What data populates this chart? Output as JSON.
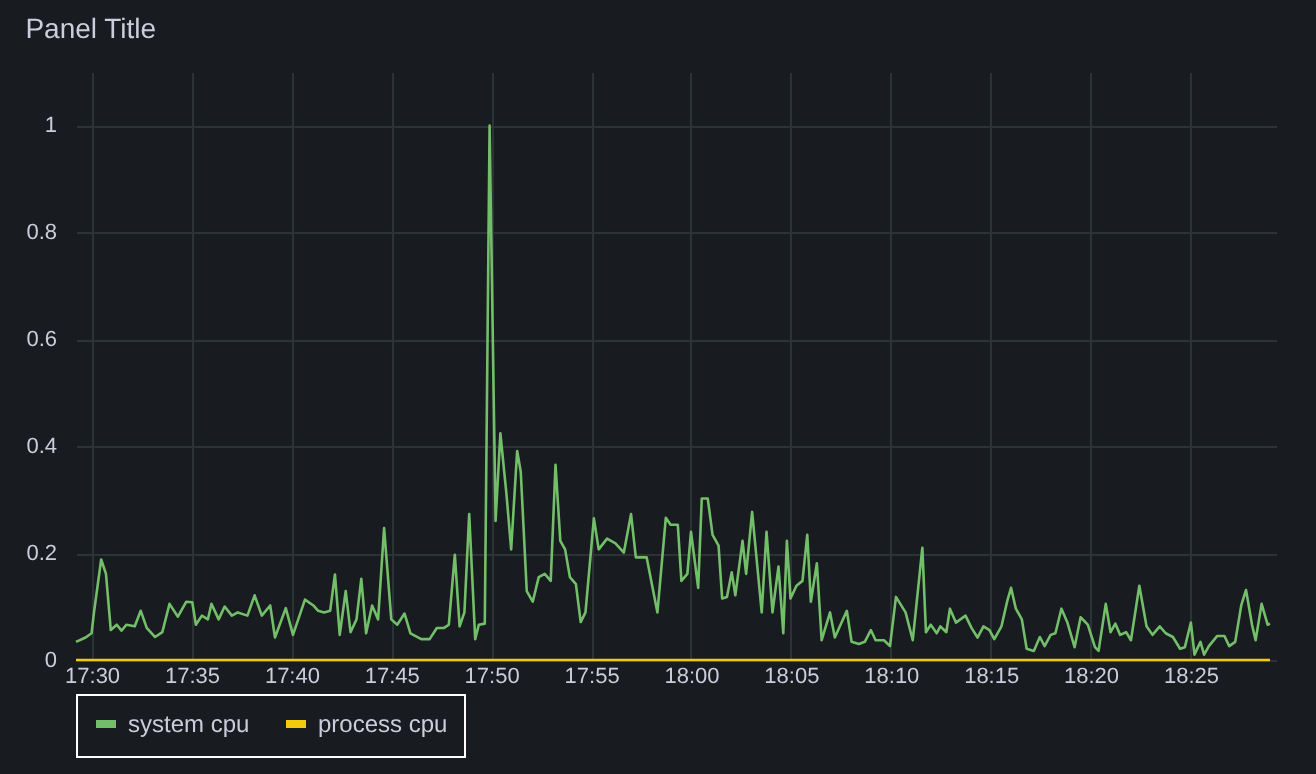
{
  "chart_data": {
    "type": "line",
    "title": "Panel Title",
    "xlim": [
      17.487,
      18.488
    ],
    "xticks": [
      {
        "value": 17.5,
        "label": "17:30"
      },
      {
        "value": 17.5833,
        "label": "17:35"
      },
      {
        "value": 17.6667,
        "label": "17:40"
      },
      {
        "value": 17.75,
        "label": "17:45"
      },
      {
        "value": 17.8333,
        "label": "17:50"
      },
      {
        "value": 17.9167,
        "label": "17:55"
      },
      {
        "value": 18.0,
        "label": "18:00"
      },
      {
        "value": 18.0833,
        "label": "18:05"
      },
      {
        "value": 18.1667,
        "label": "18:10"
      },
      {
        "value": 18.25,
        "label": "18:15"
      },
      {
        "value": 18.3333,
        "label": "18:20"
      },
      {
        "value": 18.4167,
        "label": "18:25"
      }
    ],
    "ylim": [
      0,
      1.1
    ],
    "yticks": [
      0,
      0.2,
      0.4,
      0.6,
      0.8,
      1
    ],
    "grid": true,
    "legend": "bottom left",
    "line_style": "solid",
    "series": [
      {
        "name": "system cpu",
        "color": "#73bf69",
        "x": [
          17.487,
          17.495,
          17.5,
          17.502,
          17.508,
          17.512,
          17.516,
          17.521,
          17.525,
          17.529,
          17.536,
          17.541,
          17.546,
          17.553,
          17.559,
          17.565,
          17.572,
          17.579,
          17.584,
          17.587,
          17.592,
          17.597,
          17.6,
          17.606,
          17.611,
          17.617,
          17.622,
          17.63,
          17.636,
          17.642,
          17.649,
          17.653,
          17.662,
          17.668,
          17.678,
          17.685,
          17.689,
          17.694,
          17.699,
          17.703,
          17.707,
          17.712,
          17.716,
          17.721,
          17.725,
          17.729,
          17.734,
          17.739,
          17.744,
          17.75,
          17.755,
          17.761,
          17.766,
          17.775,
          17.782,
          17.788,
          17.794,
          17.798,
          17.803,
          17.807,
          17.811,
          17.815,
          17.82,
          17.823,
          17.828,
          17.832,
          17.837,
          17.841,
          17.846,
          17.85,
          17.855,
          17.858,
          17.863,
          17.868,
          17.873,
          17.878,
          17.883,
          17.887,
          17.891,
          17.895,
          17.899,
          17.904,
          17.908,
          17.912,
          17.919,
          17.923,
          17.93,
          17.937,
          17.944,
          17.95,
          17.954,
          17.963,
          17.972,
          17.979,
          17.983,
          17.989,
          17.992,
          17.997,
          18.0,
          18.006,
          18.009,
          18.014,
          18.018,
          18.023,
          18.026,
          18.03,
          18.034,
          18.037,
          18.043,
          18.046,
          18.051,
          18.059,
          18.063,
          18.068,
          18.073,
          18.077,
          18.08,
          18.083,
          18.088,
          18.093,
          18.097,
          18.1,
          18.105,
          18.109,
          18.116,
          18.12,
          18.13,
          18.134,
          18.14,
          18.145,
          18.15,
          18.154,
          18.161,
          18.166,
          18.171,
          18.179,
          18.185,
          18.193,
          18.196,
          18.2,
          18.205,
          18.208,
          18.213,
          18.216,
          18.221,
          18.229,
          18.234,
          18.239,
          18.244,
          18.249,
          18.253,
          18.259,
          18.264,
          18.267,
          18.271,
          18.276,
          18.28,
          18.286,
          18.291,
          18.295,
          18.3,
          18.304,
          18.309,
          18.314,
          18.32,
          18.325,
          18.331,
          18.337,
          18.34,
          18.346,
          18.35,
          18.354,
          18.358,
          18.363,
          18.367,
          18.374,
          18.38,
          18.385,
          18.391,
          18.396,
          18.402,
          18.408,
          18.412,
          18.417,
          18.42,
          18.425,
          18.428,
          18.432,
          18.439,
          18.445,
          18.449,
          18.454,
          18.459,
          18.463,
          18.468,
          18.471,
          18.476,
          18.481,
          18.483
        ],
        "values": [
          0.034,
          0.042,
          0.05,
          0.089,
          0.188,
          0.161,
          0.056,
          0.066,
          0.055,
          0.066,
          0.063,
          0.092,
          0.06,
          0.043,
          0.052,
          0.105,
          0.081,
          0.109,
          0.108,
          0.066,
          0.083,
          0.076,
          0.105,
          0.076,
          0.1,
          0.083,
          0.089,
          0.083,
          0.121,
          0.083,
          0.102,
          0.042,
          0.097,
          0.047,
          0.113,
          0.102,
          0.092,
          0.089,
          0.092,
          0.16,
          0.047,
          0.129,
          0.052,
          0.076,
          0.152,
          0.05,
          0.102,
          0.076,
          0.247,
          0.076,
          0.066,
          0.087,
          0.05,
          0.039,
          0.039,
          0.06,
          0.06,
          0.066,
          0.197,
          0.063,
          0.089,
          0.273,
          0.039,
          0.066,
          0.068,
          1.0,
          0.26,
          0.424,
          0.312,
          0.207,
          0.391,
          0.352,
          0.129,
          0.109,
          0.155,
          0.161,
          0.148,
          0.365,
          0.223,
          0.207,
          0.155,
          0.142,
          0.071,
          0.089,
          0.265,
          0.207,
          0.227,
          0.218,
          0.201,
          0.273,
          0.192,
          0.192,
          0.089,
          0.266,
          0.253,
          0.253,
          0.148,
          0.161,
          0.24,
          0.135,
          0.302,
          0.302,
          0.234,
          0.214,
          0.115,
          0.118,
          0.164,
          0.121,
          0.223,
          0.161,
          0.277,
          0.089,
          0.24,
          0.089,
          0.175,
          0.05,
          0.223,
          0.115,
          0.139,
          0.148,
          0.234,
          0.109,
          0.181,
          0.037,
          0.089,
          0.042,
          0.092,
          0.034,
          0.03,
          0.034,
          0.056,
          0.037,
          0.037,
          0.026,
          0.118,
          0.089,
          0.037,
          0.21,
          0.052,
          0.066,
          0.05,
          0.063,
          0.052,
          0.096,
          0.07,
          0.083,
          0.06,
          0.042,
          0.063,
          0.056,
          0.039,
          0.063,
          0.112,
          0.135,
          0.096,
          0.076,
          0.021,
          0.017,
          0.043,
          0.026,
          0.047,
          0.05,
          0.096,
          0.07,
          0.024,
          0.08,
          0.066,
          0.024,
          0.017,
          0.105,
          0.052,
          0.068,
          0.047,
          0.052,
          0.037,
          0.139,
          0.063,
          0.047,
          0.063,
          0.05,
          0.043,
          0.021,
          0.024,
          0.07,
          0.01,
          0.034,
          0.01,
          0.026,
          0.045,
          0.045,
          0.026,
          0.034,
          0.102,
          0.131,
          0.066,
          0.037,
          0.105,
          0.066,
          0.068
        ]
      },
      {
        "name": "process cpu",
        "color": "#f2cc0c",
        "x": [
          17.487,
          17.5833,
          17.6667,
          17.75,
          17.8333,
          17.9167,
          18.0,
          18.0833,
          18.1667,
          18.25,
          18.3333,
          18.4167,
          18.483
        ],
        "values": [
          0,
          0,
          0,
          0,
          0,
          0,
          0,
          0,
          0,
          0,
          0,
          0,
          0
        ]
      }
    ]
  }
}
